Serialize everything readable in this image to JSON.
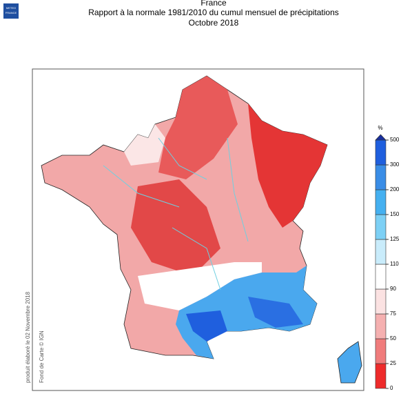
{
  "header": {
    "country": "France",
    "title": "Rapport à la normale 1981/2010 du cumul mensuel de précipitations",
    "period": "Octobre 2018"
  },
  "logo": {
    "line1": "METEO",
    "line2": "FRANCE"
  },
  "legend": {
    "unit": "%",
    "ticks": [
      0,
      25,
      50,
      75,
      90,
      110,
      125,
      150,
      200,
      300,
      500
    ],
    "colors": [
      "#ee2b2b",
      "#f07c7c",
      "#f5b0b0",
      "#fbe2e2",
      "#ffffff",
      "#c9ecfb",
      "#7dd0f5",
      "#45b0f0",
      "#3a8de6",
      "#1f5fde",
      "#182f9e"
    ]
  },
  "credits": {
    "produced": "produit élaboré le 02 Novembre 2018",
    "basemap": "Fond de Carte © IGN"
  }
}
